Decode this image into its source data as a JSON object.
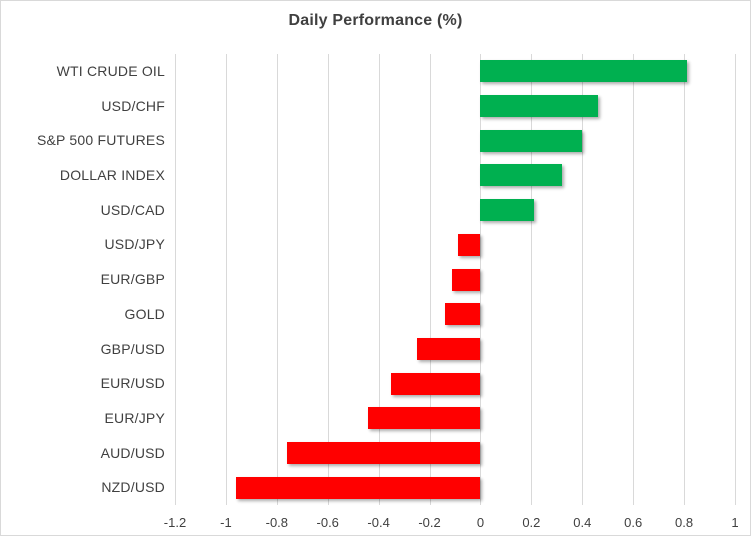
{
  "chart_data": {
    "type": "bar",
    "orientation": "horizontal",
    "title": "Daily Performance (%)",
    "categories": [
      "WTI CRUDE OIL",
      "USD/CHF",
      "S&P 500 FUTURES",
      "DOLLAR INDEX",
      "USD/CAD",
      "USD/JPY",
      "EUR/GBP",
      "GOLD",
      "GBP/USD",
      "EUR/USD",
      "EUR/JPY",
      "AUD/USD",
      "NZD/USD"
    ],
    "values": [
      0.81,
      0.46,
      0.4,
      0.32,
      0.21,
      -0.09,
      -0.11,
      -0.14,
      -0.25,
      -0.35,
      -0.44,
      -0.76,
      -0.96
    ],
    "xlabel": "",
    "ylabel": "",
    "xlim": [
      -1.2,
      1.0
    ],
    "x_ticks": [
      -1.2,
      -1,
      -0.8,
      -0.6,
      -0.4,
      -0.2,
      0,
      0.2,
      0.4,
      0.6,
      0.8,
      1
    ],
    "x_tick_labels": [
      "-1.2",
      "-1",
      "-0.8",
      "-0.6",
      "-0.4",
      "-0.2",
      "0",
      "0.2",
      "0.4",
      "0.6",
      "0.8",
      "1"
    ],
    "grid": true,
    "legend": false,
    "colors": {
      "positive": "#00b050",
      "negative": "#ff0000",
      "gridline": "#d9d9d9",
      "text": "#404040",
      "border": "#d9d9d9",
      "background": "#ffffff"
    }
  }
}
